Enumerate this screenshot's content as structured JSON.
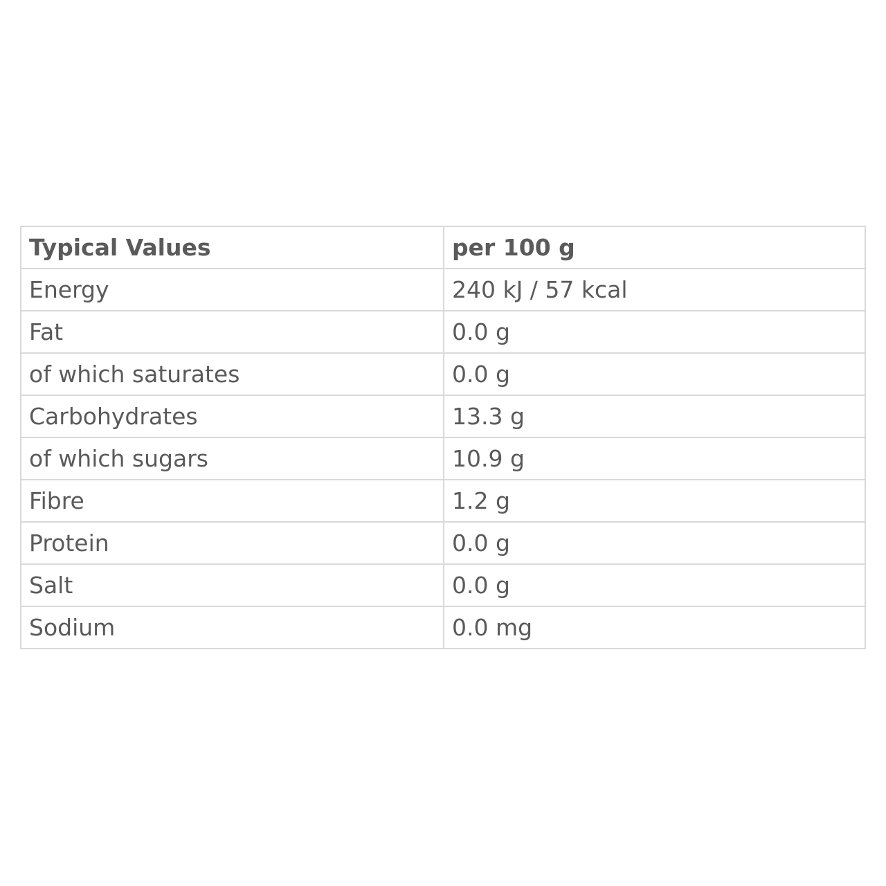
{
  "table": {
    "header": [
      "Typical Values",
      "per 100 g"
    ],
    "rows": [
      [
        "Energy",
        "240 kJ / 57 kcal"
      ],
      [
        "Fat",
        "0.0 g"
      ],
      [
        "of which saturates",
        "0.0 g"
      ],
      [
        "Carbohydrates",
        "13.3 g"
      ],
      [
        "of which sugars",
        "10.9 g"
      ],
      [
        "Fibre",
        "1.2 g"
      ],
      [
        "Protein",
        "0.0 g"
      ],
      [
        "Salt",
        "0.0 g"
      ],
      [
        "Sodium",
        "0.0 mg"
      ]
    ]
  },
  "colors": {
    "text": "#5a5a5a",
    "border": "#d9d9d9"
  }
}
